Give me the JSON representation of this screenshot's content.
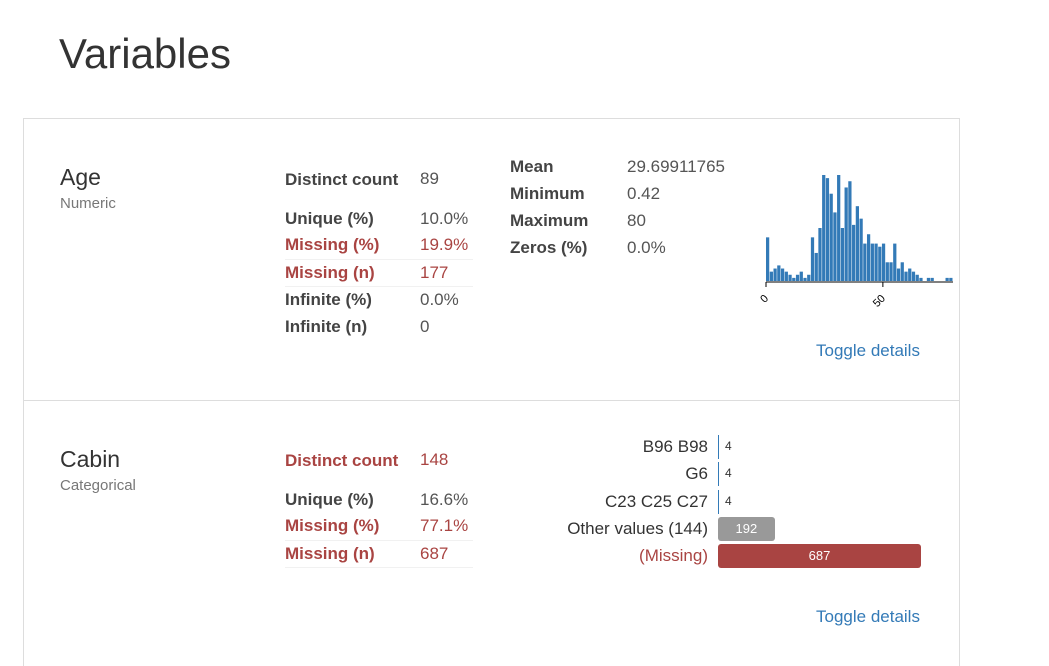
{
  "page": {
    "title": "Variables"
  },
  "variables": [
    {
      "name": "Age",
      "type": "Numeric",
      "stats_left": [
        {
          "label": "Distinct count",
          "value": "89",
          "alert": false
        },
        {
          "label": "Unique (%)",
          "value": "10.0%",
          "alert": false
        },
        {
          "label": "Missing (%)",
          "value": "19.9%",
          "alert": true
        },
        {
          "label": "Missing (n)",
          "value": "177",
          "alert": true
        },
        {
          "label": "Infinite (%)",
          "value": "0.0%",
          "alert": false
        },
        {
          "label": "Infinite (n)",
          "value": "0",
          "alert": false
        }
      ],
      "stats_right": [
        {
          "label": "Mean",
          "value": "29.69911765"
        },
        {
          "label": "Minimum",
          "value": "0.42"
        },
        {
          "label": "Maximum",
          "value": "80"
        },
        {
          "label": "Zeros (%)",
          "value": "0.0%"
        }
      ],
      "toggle_label": "Toggle details"
    },
    {
      "name": "Cabin",
      "type": "Categorical",
      "stats_left": [
        {
          "label": "Distinct count",
          "value": "148",
          "alert": true
        },
        {
          "label": "Unique (%)",
          "value": "16.6%",
          "alert": false
        },
        {
          "label": "Missing (%)",
          "value": "77.1%",
          "alert": true
        },
        {
          "label": "Missing (n)",
          "value": "687",
          "alert": true
        }
      ],
      "freq_table": [
        {
          "label": "B96 B98",
          "count": 4,
          "display": "4",
          "kind": "value"
        },
        {
          "label": "G6",
          "count": 4,
          "display": "4",
          "kind": "value"
        },
        {
          "label": "C23 C25 C27",
          "count": 4,
          "display": "4",
          "kind": "value"
        },
        {
          "label": "Other values (144)",
          "count": 192,
          "display": "192",
          "kind": "other"
        },
        {
          "label": "(Missing)",
          "count": 687,
          "display": "687",
          "kind": "missing"
        }
      ],
      "toggle_label": "Toggle details"
    }
  ],
  "colors": {
    "accent": "#337ab7",
    "alert": "#a94442",
    "other_bar": "#999999",
    "missing_bar": "#a94442"
  },
  "chart_data": {
    "type": "bar",
    "title": "",
    "xlabel": "",
    "ylabel": "",
    "x_ticks": [
      "0",
      "50"
    ],
    "xlim": [
      0,
      80
    ],
    "bin_width": 1.6,
    "values": [
      14,
      3,
      4,
      5,
      4,
      3,
      2,
      1,
      2,
      3,
      1,
      2,
      14,
      9,
      17,
      34,
      33,
      28,
      22,
      34,
      17,
      30,
      32,
      18,
      24,
      20,
      12,
      15,
      12,
      12,
      11,
      12,
      6,
      6,
      12,
      4,
      6,
      3,
      4,
      3,
      2,
      1,
      0,
      1,
      1,
      0,
      0,
      0,
      1,
      1
    ],
    "grid": false,
    "legend": "none"
  }
}
